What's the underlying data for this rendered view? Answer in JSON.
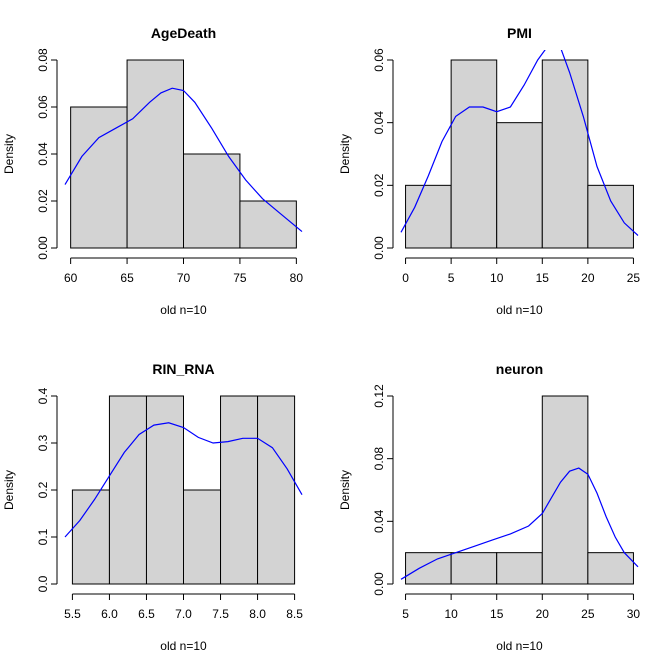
{
  "chart_data": [
    {
      "type": "histogram",
      "title": "AgeDeath",
      "xlabel": "old n=10",
      "ylabel": "Density",
      "xlim": [
        59.5,
        80.5
      ],
      "ylim": [
        0,
        0.08
      ],
      "xticks": [
        60,
        65,
        70,
        75,
        80
      ],
      "xtick_labels": [
        "60",
        "65",
        "70",
        "75",
        "80"
      ],
      "yticks": [
        0,
        0.02,
        0.04,
        0.06,
        0.08
      ],
      "ytick_labels": [
        "0.00",
        "0.02",
        "0.04",
        "0.06",
        "0.08"
      ],
      "bins": [
        [
          60,
          65
        ],
        [
          65,
          70
        ],
        [
          70,
          75
        ],
        [
          75,
          80
        ]
      ],
      "values": [
        0.06,
        0.08,
        0.04,
        0.02
      ],
      "density_color": "#0000ff",
      "density": {
        "x": [
          59.5,
          61,
          62.5,
          64,
          65.5,
          67,
          68,
          69,
          70,
          71,
          72.5,
          74,
          75.5,
          77,
          78.5,
          80.5
        ],
        "y": [
          0.027,
          0.039,
          0.047,
          0.051,
          0.055,
          0.062,
          0.066,
          0.068,
          0.067,
          0.062,
          0.051,
          0.039,
          0.029,
          0.021,
          0.015,
          0.007
        ]
      }
    },
    {
      "type": "histogram",
      "title": "PMI",
      "xlabel": "old n=10",
      "ylabel": "Density",
      "xlim": [
        -0.5,
        25.5
      ],
      "ylim": [
        0,
        0.06
      ],
      "xticks": [
        0,
        5,
        10,
        15,
        20,
        25
      ],
      "xtick_labels": [
        "0",
        "5",
        "10",
        "15",
        "20",
        "25"
      ],
      "yticks": [
        0,
        0.02,
        0.04,
        0.06
      ],
      "ytick_labels": [
        "0.00",
        "0.02",
        "0.04",
        "0.06"
      ],
      "bins": [
        [
          0,
          5
        ],
        [
          5,
          10
        ],
        [
          10,
          15
        ],
        [
          15,
          20
        ],
        [
          20,
          25
        ]
      ],
      "values": [
        0.02,
        0.06,
        0.04,
        0.06,
        0.02
      ],
      "density_color": "#0000ff",
      "density": {
        "x": [
          -0.5,
          1,
          2.5,
          4,
          5.5,
          7,
          8.5,
          10,
          11.5,
          13,
          14.5,
          16,
          17,
          18,
          19.5,
          21,
          22.5,
          24,
          25.5
        ],
        "y": [
          0.005,
          0.013,
          0.023,
          0.034,
          0.042,
          0.045,
          0.045,
          0.0435,
          0.045,
          0.052,
          0.06,
          0.066,
          0.064,
          0.056,
          0.042,
          0.026,
          0.015,
          0.008,
          0.004
        ]
      }
    },
    {
      "type": "histogram",
      "title": "RIN_RNA",
      "xlabel": "old n=10",
      "ylabel": "Density",
      "xlim": [
        5.4,
        8.6
      ],
      "ylim": [
        0,
        0.4
      ],
      "xticks": [
        5.5,
        6,
        6.5,
        7,
        7.5,
        8,
        8.5
      ],
      "xtick_labels": [
        "5.5",
        "6.0",
        "6.5",
        "7.0",
        "7.5",
        "8.0",
        "8.5"
      ],
      "yticks": [
        0,
        0.1,
        0.2,
        0.3,
        0.4
      ],
      "ytick_labels": [
        "0.0",
        "0.1",
        "0.2",
        "0.3",
        "0.4"
      ],
      "bins": [
        [
          5.5,
          6
        ],
        [
          6,
          6.5
        ],
        [
          6.5,
          7
        ],
        [
          7,
          7.5
        ],
        [
          7.5,
          8
        ],
        [
          8,
          8.5
        ]
      ],
      "values": [
        0.2,
        0.4,
        0.4,
        0.2,
        0.4,
        0.4
      ],
      "density_color": "#0000ff",
      "density": {
        "x": [
          5.4,
          5.6,
          5.8,
          6,
          6.2,
          6.4,
          6.6,
          6.8,
          7,
          7.2,
          7.4,
          7.6,
          7.8,
          8,
          8.2,
          8.4,
          8.6
        ],
        "y": [
          0.1,
          0.135,
          0.18,
          0.23,
          0.28,
          0.318,
          0.338,
          0.343,
          0.333,
          0.312,
          0.3,
          0.303,
          0.31,
          0.31,
          0.29,
          0.245,
          0.19
        ]
      }
    },
    {
      "type": "histogram",
      "title": "neuron",
      "xlabel": "old n=10",
      "ylabel": "Density",
      "xlim": [
        4.5,
        30.5
      ],
      "ylim": [
        0,
        0.12
      ],
      "xticks": [
        5,
        10,
        15,
        20,
        25,
        30
      ],
      "xtick_labels": [
        "5",
        "10",
        "15",
        "20",
        "25",
        "30"
      ],
      "yticks": [
        0,
        0.04,
        0.08,
        0.12
      ],
      "ytick_labels": [
        "0.00",
        "0.04",
        "0.08",
        "0.12"
      ],
      "bins": [
        [
          5,
          10
        ],
        [
          10,
          15
        ],
        [
          15,
          20
        ],
        [
          20,
          25
        ],
        [
          25,
          30
        ]
      ],
      "values": [
        0.02,
        0.02,
        0.02,
        0.12,
        0.02
      ],
      "density_color": "#0000ff",
      "density": {
        "x": [
          4.5,
          6.5,
          8.5,
          10.5,
          12.5,
          14.5,
          16.5,
          18.5,
          20,
          21,
          22,
          23,
          24,
          25,
          26,
          27,
          28,
          29,
          30.5
        ],
        "y": [
          0.003,
          0.01,
          0.016,
          0.02,
          0.024,
          0.028,
          0.032,
          0.037,
          0.045,
          0.055,
          0.065,
          0.072,
          0.074,
          0.07,
          0.058,
          0.043,
          0.03,
          0.02,
          0.011
        ]
      }
    }
  ]
}
